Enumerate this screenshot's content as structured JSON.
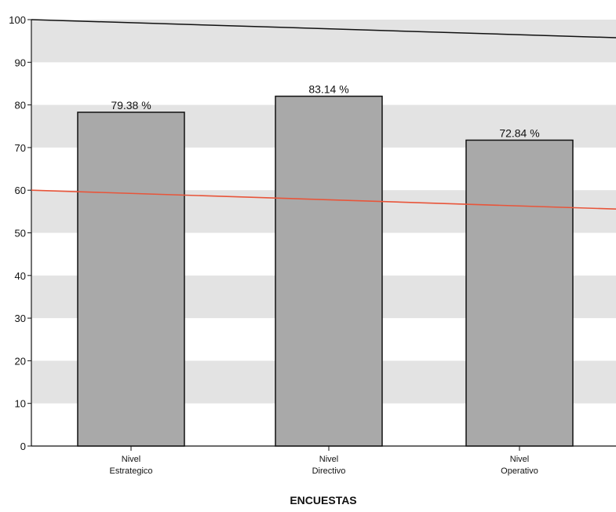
{
  "chart_data": {
    "type": "bar",
    "title": "",
    "xlabel": "ENCUESTAS",
    "ylabel": "",
    "ylim": [
      0,
      100
    ],
    "yticks": [
      0,
      10,
      20,
      30,
      40,
      50,
      60,
      70,
      80,
      90,
      100
    ],
    "categories": [
      [
        "Nivel",
        "Estrategico"
      ],
      [
        "Nivel",
        "Directivo"
      ],
      [
        "Nivel",
        "Operativo"
      ]
    ],
    "values": [
      79.38,
      83.14,
      72.84
    ],
    "value_labels": [
      "79.38 %",
      "83.14 %",
      "72.84 %"
    ],
    "reference_line": {
      "value": 60,
      "color": "#e8553a"
    },
    "grid": "alternating horizontal bands",
    "colors": {
      "bar": "#a9a9a9",
      "band": "#e3e3e3",
      "bar_edge": "#111111"
    }
  }
}
